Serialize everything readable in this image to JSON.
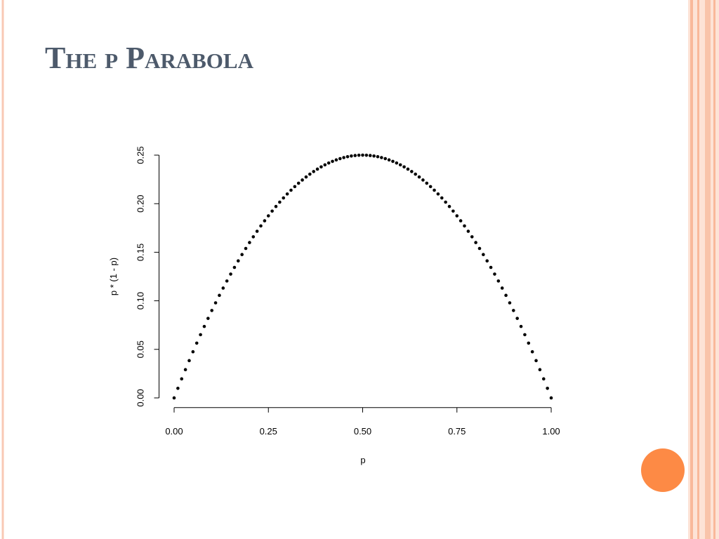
{
  "slide": {
    "title": "The p Parabola"
  },
  "chart_data": {
    "type": "scatter",
    "x_label": "p",
    "y_label": "p * (1 - p)",
    "color": "#000000",
    "x": [
      0,
      0.01,
      0.02,
      0.03,
      0.04,
      0.05,
      0.06,
      0.07,
      0.08,
      0.09,
      0.1,
      0.11,
      0.12,
      0.13,
      0.14,
      0.15,
      0.16,
      0.17,
      0.18,
      0.19,
      0.2,
      0.21,
      0.22,
      0.23,
      0.24,
      0.25,
      0.26,
      0.27,
      0.28,
      0.29,
      0.3,
      0.31,
      0.32,
      0.33,
      0.34,
      0.35,
      0.36,
      0.37,
      0.38,
      0.39,
      0.4,
      0.41,
      0.42,
      0.43,
      0.44,
      0.45,
      0.46,
      0.47,
      0.48,
      0.49,
      0.5,
      0.51,
      0.52,
      0.53,
      0.54,
      0.55,
      0.56,
      0.57,
      0.58,
      0.59,
      0.6,
      0.61,
      0.62,
      0.63,
      0.64,
      0.65,
      0.66,
      0.67,
      0.68,
      0.69,
      0.7,
      0.71,
      0.72,
      0.73,
      0.74,
      0.75,
      0.76,
      0.77,
      0.78,
      0.79,
      0.8,
      0.81,
      0.82,
      0.83,
      0.84,
      0.85,
      0.86,
      0.87,
      0.88,
      0.89,
      0.9,
      0.91,
      0.92,
      0.93,
      0.94,
      0.95,
      0.96,
      0.97,
      0.98,
      0.99,
      1
    ],
    "values": [
      0,
      0.0099,
      0.0196,
      0.0291,
      0.0384,
      0.0475,
      0.0564,
      0.0651,
      0.0736,
      0.0819,
      0.09,
      0.0979,
      0.1056,
      0.1131,
      0.1204,
      0.1275,
      0.1344,
      0.1411,
      0.1476,
      0.1539,
      0.16,
      0.1659,
      0.1716,
      0.1771,
      0.1824,
      0.1875,
      0.1924,
      0.1971,
      0.2016,
      0.2059,
      0.21,
      0.2139,
      0.2176,
      0.2211,
      0.2244,
      0.2275,
      0.2304,
      0.2331,
      0.2356,
      0.2379,
      0.24,
      0.2419,
      0.2436,
      0.2451,
      0.2464,
      0.2475,
      0.2484,
      0.2491,
      0.2496,
      0.2499,
      0.25,
      0.2499,
      0.2496,
      0.2491,
      0.2484,
      0.2475,
      0.2464,
      0.2451,
      0.2436,
      0.2419,
      0.24,
      0.2379,
      0.2356,
      0.2331,
      0.2304,
      0.2275,
      0.2244,
      0.2211,
      0.2176,
      0.2139,
      0.21,
      0.2059,
      0.2016,
      0.1971,
      0.1924,
      0.1875,
      0.1824,
      0.1771,
      0.1716,
      0.1659,
      0.16,
      0.1539,
      0.1476,
      0.1411,
      0.1344,
      0.1275,
      0.1204,
      0.1131,
      0.1056,
      0.0979,
      0.09,
      0.0819,
      0.0736,
      0.0651,
      0.0564,
      0.0475,
      0.0384,
      0.0291,
      0.0196,
      0.0099,
      0
    ],
    "xlim": [
      -0.04,
      1.04
    ],
    "ylim": [
      -0.01,
      0.26
    ],
    "xticks": [
      {
        "value": 0,
        "label": "0.00"
      },
      {
        "value": 0.25,
        "label": "0.25"
      },
      {
        "value": 0.5,
        "label": "0.50"
      },
      {
        "value": 0.75,
        "label": "0.75"
      },
      {
        "value": 1,
        "label": "1.00"
      }
    ],
    "yticks": [
      {
        "value": 0,
        "label": "0.00"
      },
      {
        "value": 0.05,
        "label": "0.05"
      },
      {
        "value": 0.1,
        "label": "0.10"
      },
      {
        "value": 0.15,
        "label": "0.15"
      },
      {
        "value": 0.2,
        "label": "0.20"
      },
      {
        "value": 0.25,
        "label": "0.25"
      }
    ],
    "grid": false
  }
}
